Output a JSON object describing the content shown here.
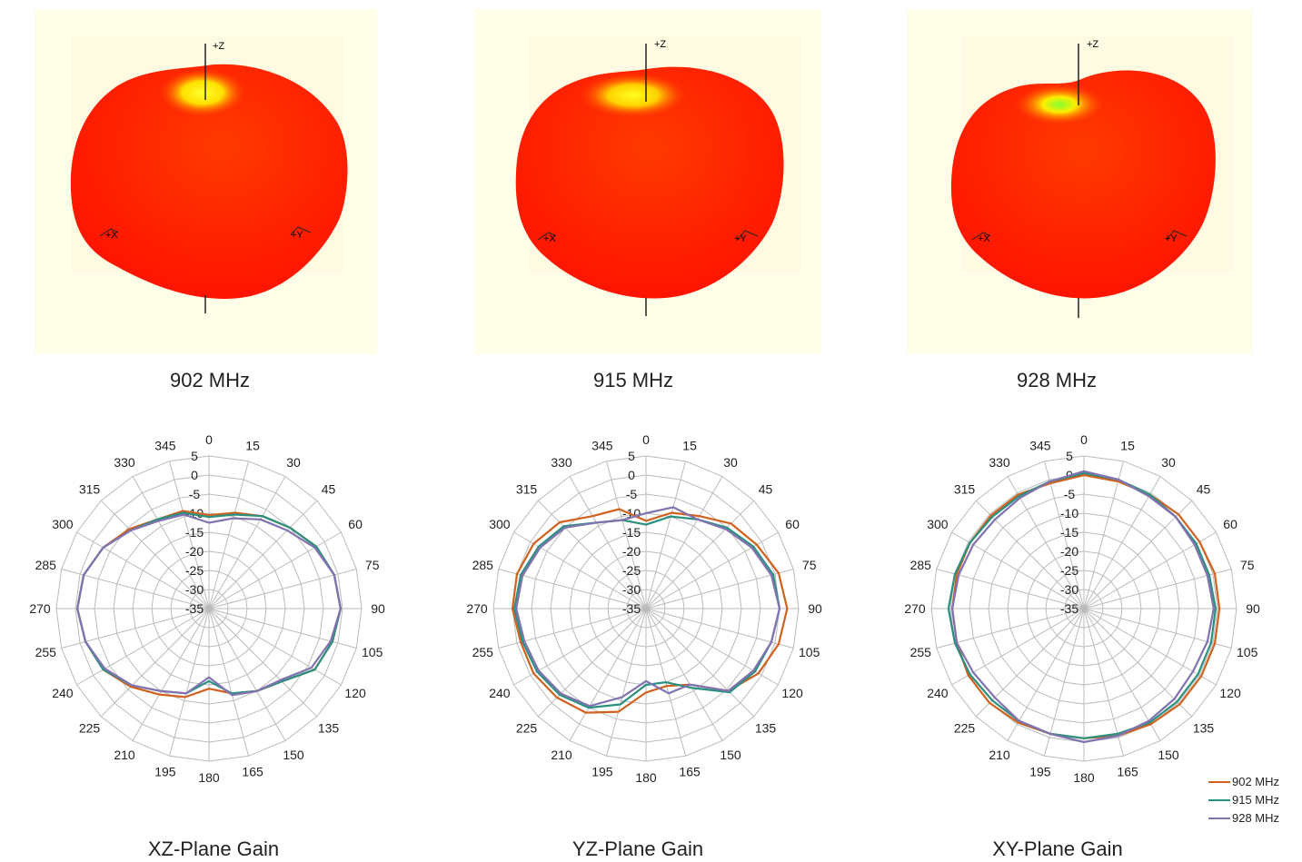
{
  "patterns_3d": [
    {
      "caption": "902 MHz",
      "axis_labels": {
        "z": "+Z",
        "x": "+X",
        "y": "+Y"
      },
      "hotspot": "#ffe000",
      "hot_core": "#ffff30"
    },
    {
      "caption": "915 MHz",
      "axis_labels": {
        "z": "+Z",
        "x": "+X",
        "y": "+Y"
      },
      "hotspot": "#ffd000",
      "hot_core": "#ffff20"
    },
    {
      "caption": "928 MHz",
      "axis_labels": {
        "z": "+Z",
        "x": "+X",
        "y": "+Y"
      },
      "hotspot": "#ffee00",
      "hot_core": "#80ff30"
    }
  ],
  "legend": {
    "placement": "bottom-right",
    "entries": [
      {
        "name": "902 MHz",
        "color": "#d0611e"
      },
      {
        "name": "915 MHz",
        "color": "#2a9080"
      },
      {
        "name": "928 MHz",
        "color": "#8273b0"
      }
    ]
  },
  "chart_data": [
    {
      "type": "polar-line",
      "title": "XZ-Plane Gain",
      "angles": [
        0,
        15,
        30,
        45,
        60,
        75,
        90,
        105,
        120,
        135,
        150,
        165,
        180,
        195,
        210,
        225,
        240,
        255,
        270,
        285,
        300,
        315,
        330,
        345
      ],
      "rlim": [
        -35,
        5
      ],
      "r_ticks": [
        "5",
        "0",
        "-5",
        "-10",
        "-15",
        "-20",
        "-25",
        "-30",
        "-35"
      ],
      "grid": true,
      "series": [
        {
          "name": "902 MHz",
          "values": [
            -10.5,
            -9,
            -7,
            -5,
            -2.5,
            -1,
            -0.5,
            -1.5,
            -3,
            -8,
            -10,
            -12,
            -14,
            -11,
            -9,
            -6,
            -3,
            -1.5,
            -0.5,
            -1,
            -3,
            -5.5,
            -8,
            -8.5
          ]
        },
        {
          "name": "915 MHz",
          "values": [
            -11,
            -9.5,
            -7,
            -5,
            -2.5,
            -1,
            -0.5,
            -1.5,
            -3,
            -8,
            -10,
            -12,
            -16,
            -12,
            -10,
            -6.5,
            -3,
            -1.5,
            -0.5,
            -1,
            -3,
            -6,
            -8,
            -9
          ]
        },
        {
          "name": "928 MHz",
          "values": [
            -12.5,
            -10.5,
            -8,
            -6,
            -3,
            -1,
            -0.5,
            -2,
            -4,
            -8.5,
            -10,
            -11.5,
            -17,
            -12,
            -10,
            -6.5,
            -3.5,
            -1.5,
            -0.5,
            -1,
            -3,
            -6,
            -8.5,
            -9.5
          ]
        }
      ]
    },
    {
      "type": "polar-line",
      "title": "YZ-Plane Gain",
      "angles": [
        0,
        15,
        30,
        45,
        60,
        75,
        90,
        105,
        120,
        135,
        150,
        165,
        180,
        195,
        210,
        225,
        240,
        255,
        270,
        285,
        300,
        315,
        330,
        345
      ],
      "rlim": [
        -35,
        5
      ],
      "r_ticks": [
        "5",
        "0",
        "-5",
        "-10",
        "-15",
        "-20",
        "-25",
        "-30",
        "-35"
      ],
      "grid": true,
      "series": [
        {
          "name": "902 MHz",
          "values": [
            -12,
            -9,
            -7,
            -3.5,
            -1.5,
            1,
            2,
            1,
            -1,
            -4.5,
            -12,
            -14,
            -13,
            -7,
            -3.5,
            -2,
            -1,
            -1,
            0,
            0,
            -1,
            -3,
            -7,
            -8
          ]
        },
        {
          "name": "915 MHz",
          "values": [
            -13,
            -10,
            -8,
            -5,
            -2.5,
            -0.5,
            0,
            -1,
            -2,
            -4,
            -11,
            -15,
            -15,
            -9,
            -5,
            -3,
            -2,
            -1.5,
            -0.5,
            -1,
            -2.5,
            -4.5,
            -9,
            -11
          ]
        },
        {
          "name": "928 MHz",
          "values": [
            -10,
            -7.5,
            -8,
            -5.5,
            -3,
            -1,
            0,
            -1,
            -2.5,
            -4.5,
            -12,
            -12,
            -16,
            -11,
            -5.5,
            -3.5,
            -2.5,
            -2,
            -1,
            -1.5,
            -3,
            -5,
            -9,
            -11
          ]
        }
      ]
    },
    {
      "type": "polar-line",
      "title": "XY-Plane Gain",
      "angles": [
        0,
        15,
        30,
        45,
        60,
        75,
        90,
        105,
        120,
        135,
        150,
        165,
        180,
        195,
        210,
        225,
        240,
        255,
        270,
        285,
        300,
        315,
        330,
        345
      ],
      "rlim": [
        -35,
        5
      ],
      "r_ticks": [
        "5",
        "0",
        "-5",
        "-10",
        "-15",
        "-20",
        "-25",
        "-30",
        "-35"
      ],
      "grid": true,
      "series": [
        {
          "name": "902 MHz",
          "values": [
            0,
            -0.5,
            -0.5,
            0,
            0,
            0.5,
            0.5,
            0.5,
            0.5,
            0.5,
            0,
            -0.5,
            -1,
            -1,
            -0.5,
            0,
            0,
            -0.5,
            -0.5,
            -0.5,
            -0.5,
            -0.5,
            -0.5,
            -1
          ]
        },
        {
          "name": "915 MHz",
          "values": [
            0.5,
            0,
            -0.5,
            -1,
            -1,
            -1,
            -0.5,
            -0.5,
            -0.5,
            -0.5,
            -0.5,
            -1,
            -1,
            -1,
            -1,
            -1,
            -0.5,
            0,
            0.5,
            0,
            -0.5,
            -1,
            -1,
            -0.5
          ]
        },
        {
          "name": "928 MHz",
          "values": [
            1,
            0,
            -1,
            -1,
            -1.5,
            -1.5,
            -1,
            -1.5,
            -2,
            -1.5,
            -1,
            -0.5,
            0,
            -1,
            -1,
            -2,
            -1.5,
            -0.5,
            -0.5,
            -1,
            -1.5,
            -2,
            -1.5,
            -0.5
          ]
        }
      ]
    }
  ]
}
